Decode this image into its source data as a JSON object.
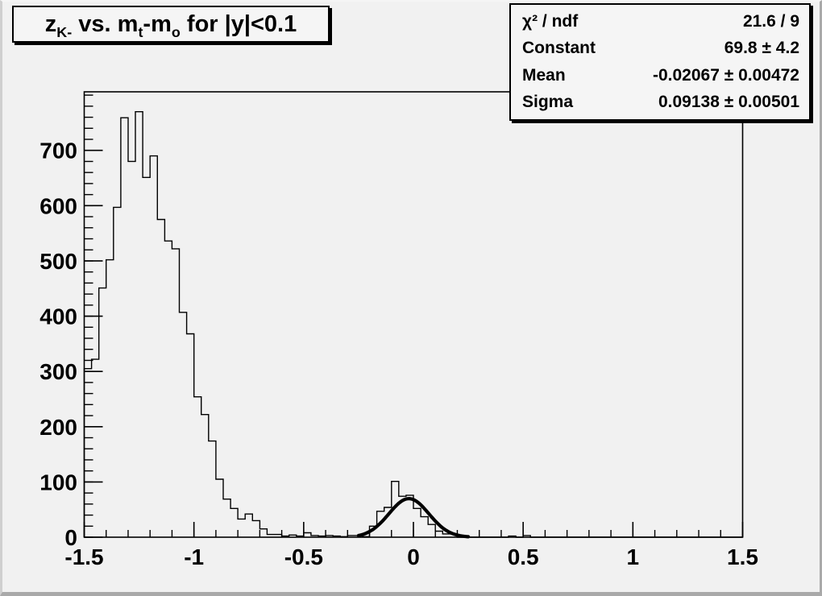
{
  "window": {
    "kind": "root-canvas-plot"
  },
  "title": {
    "plain": "z_K- vs. m_t-m_o for |y|<0.1",
    "segments": [
      {
        "t": "z"
      },
      {
        "sub": "K-"
      },
      {
        "t": " vs. m"
      },
      {
        "sub": "t"
      },
      {
        "t": "-m"
      },
      {
        "sub": "o"
      },
      {
        "t": " for |y|<0.1"
      }
    ]
  },
  "stats": {
    "rows": [
      {
        "label": "χ² / ndf",
        "value": "21.6 / 9"
      },
      {
        "label": "Constant",
        "value": "69.8 ± 4.2"
      },
      {
        "label": "Mean",
        "value": "-0.02067 ± 0.00472"
      },
      {
        "label": "Sigma",
        "value": "0.09138 ± 0.00501"
      }
    ]
  },
  "colors": {
    "canvas_bg": "#f1f1f1",
    "box_bg": "#f5f5f5",
    "line": "#000000",
    "border_dark": "#a9a9a9"
  },
  "chart_data": {
    "type": "bar",
    "subtype": "step-histogram",
    "title": "z_K- vs. m_t-m_o for |y|<0.1",
    "xlabel": "",
    "ylabel": "",
    "xlim": [
      -1.5,
      1.5
    ],
    "ylim": [
      0,
      806
    ],
    "grid": false,
    "legend": "none",
    "bin_start": -1.5,
    "bin_width": 0.033333,
    "values": [
      305,
      322,
      451,
      502,
      597,
      759,
      680,
      770,
      651,
      690,
      575,
      536,
      522,
      407,
      368,
      254,
      222,
      174,
      105,
      69,
      52,
      33,
      42,
      30,
      15,
      5,
      5,
      2,
      4,
      2,
      8,
      3,
      2,
      3,
      2,
      1,
      3,
      3,
      1,
      20,
      47,
      54,
      101,
      74,
      76,
      52,
      37,
      23,
      11,
      6,
      6,
      0,
      0,
      0,
      0,
      0,
      0,
      0,
      2,
      0,
      3,
      0,
      0,
      0,
      0,
      0,
      0,
      0,
      0,
      0,
      0,
      0,
      0,
      0,
      0,
      0,
      0,
      0,
      0,
      0,
      0,
      0,
      0,
      0,
      0,
      0,
      0,
      0,
      0,
      0
    ],
    "fit": {
      "type": "gaussian",
      "constant": 69.8,
      "mean": -0.02067,
      "sigma": 0.09138,
      "range": [
        -0.25,
        0.25
      ],
      "chi2_ndf": "21.6 / 9"
    },
    "x_ticks": {
      "major": [
        {
          "v": -1.5,
          "label": "-1.5"
        },
        {
          "v": -1.0,
          "label": "-1"
        },
        {
          "v": -0.5,
          "label": "-0.5"
        },
        {
          "v": 0.0,
          "label": "0"
        },
        {
          "v": 0.5,
          "label": "0.5"
        },
        {
          "v": 1.0,
          "label": "1"
        },
        {
          "v": 1.5,
          "label": "1.5"
        }
      ],
      "minor_step": 0.1
    },
    "y_ticks": {
      "major": [
        {
          "v": 0,
          "label": "0"
        },
        {
          "v": 100,
          "label": "100"
        },
        {
          "v": 200,
          "label": "200"
        },
        {
          "v": 300,
          "label": "300"
        },
        {
          "v": 400,
          "label": "400"
        },
        {
          "v": 500,
          "label": "500"
        },
        {
          "v": 600,
          "label": "600"
        },
        {
          "v": 700,
          "label": "700"
        }
      ],
      "minor_step": 20
    }
  }
}
